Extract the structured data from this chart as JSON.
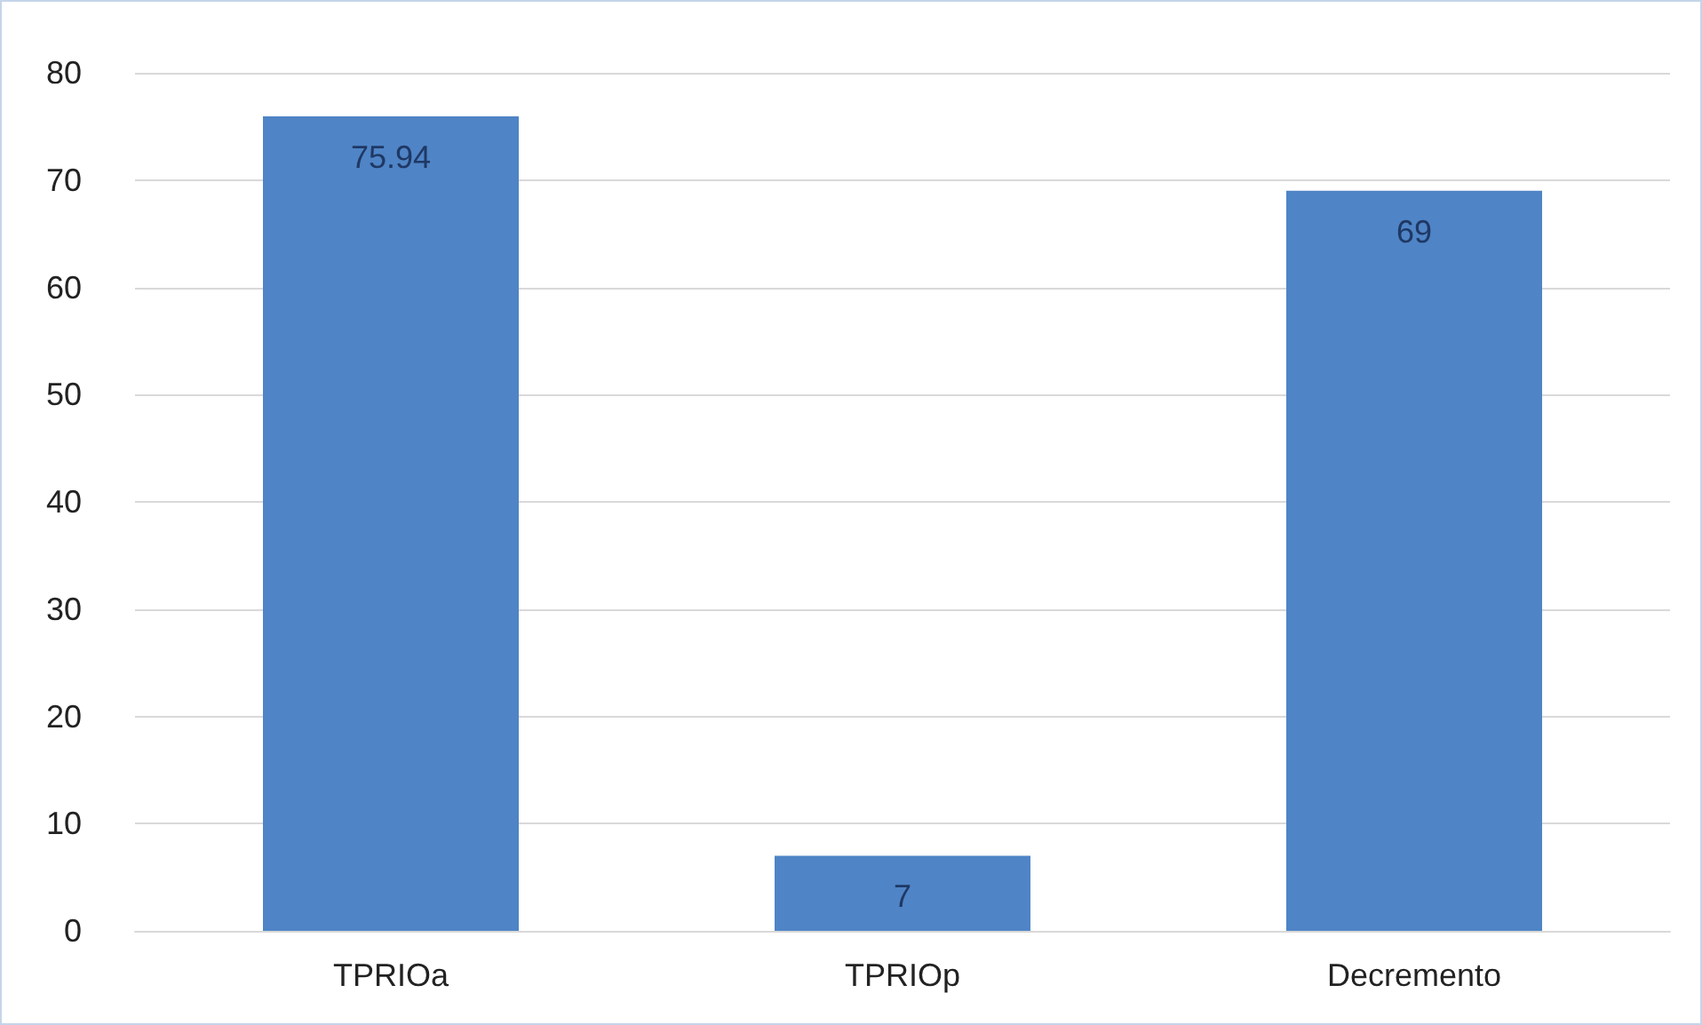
{
  "chart_data": {
    "type": "bar",
    "categories": [
      "TPRIOa",
      "TPRIOp",
      "Decremento"
    ],
    "values": [
      75.94,
      7,
      69
    ],
    "color": "#4f84c6",
    "ylim": [
      0,
      80
    ],
    "yticks": [
      0,
      10,
      20,
      30,
      40,
      50,
      60,
      70,
      80
    ],
    "grid": "y",
    "data_labels": true
  }
}
